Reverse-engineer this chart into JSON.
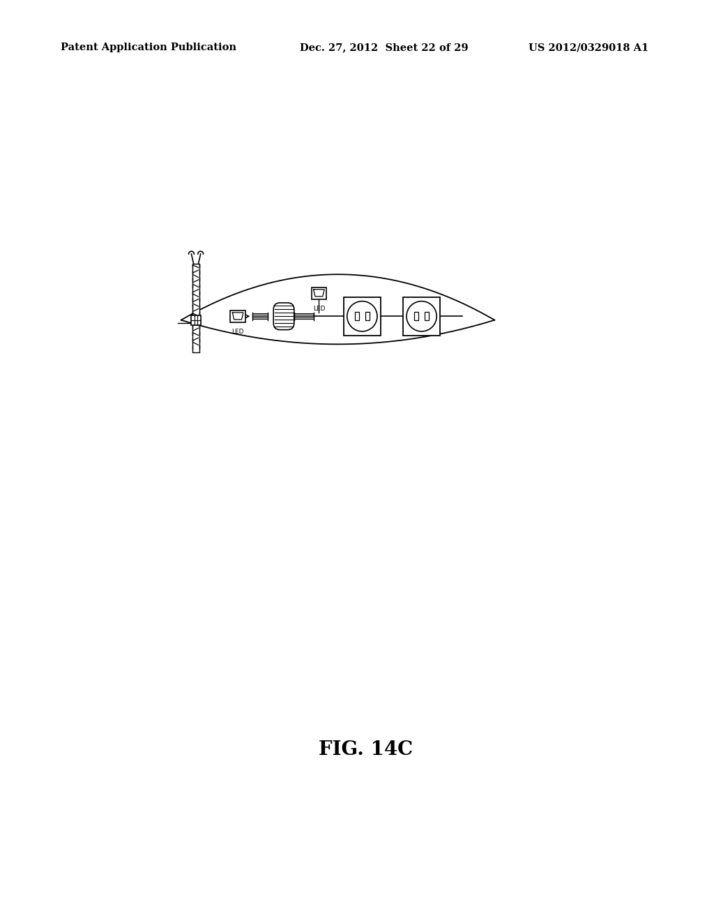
{
  "background_color": "#ffffff",
  "header_left": "Patent Application Publication",
  "header_mid": "Dec. 27, 2012  Sheet 22 of 29",
  "header_right": "US 2012/0329018 A1",
  "figure_label": "FIG. 14C",
  "header_fontsize": 10.5,
  "figure_label_fontsize": 20
}
